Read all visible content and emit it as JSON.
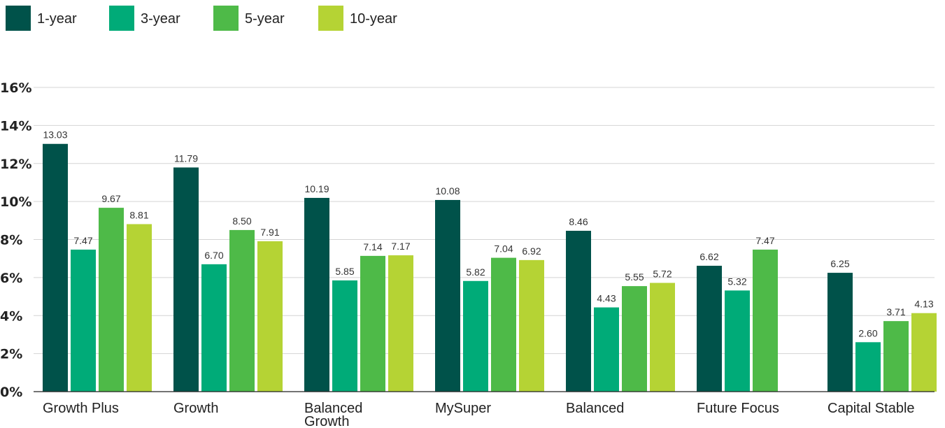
{
  "chart_data": {
    "type": "bar",
    "title": "",
    "xlabel": "",
    "ylabel": "",
    "ylim": [
      0,
      16
    ],
    "yticks": [
      0,
      2,
      4,
      6,
      8,
      10,
      12,
      14,
      16
    ],
    "ytick_labels": [
      "0%",
      "2%",
      "4%",
      "6%",
      "8%",
      "10%",
      "12%",
      "14%",
      "16%"
    ],
    "grid": true,
    "legend_position": "top-left",
    "categories": [
      [
        "Growth Plus"
      ],
      [
        "Growth"
      ],
      [
        "Balanced",
        "Growth"
      ],
      [
        "MySuper"
      ],
      [
        "Balanced"
      ],
      [
        "Future Focus"
      ],
      [
        "Capital Stable"
      ]
    ],
    "series": [
      {
        "name": "1-year",
        "color": "#00524a",
        "values": [
          13.03,
          11.79,
          10.19,
          10.08,
          8.46,
          6.62,
          6.25
        ],
        "labels": [
          "13.03",
          "11.79",
          "10.19",
          "10.08",
          "8.46",
          "6.62",
          "6.25"
        ]
      },
      {
        "name": "3-year",
        "color": "#00ab78",
        "values": [
          7.47,
          6.7,
          5.85,
          5.82,
          4.43,
          5.32,
          2.6
        ],
        "labels": [
          "7.47",
          "6.70",
          "5.85",
          "5.82",
          "4.43",
          "5.32",
          "2.60"
        ]
      },
      {
        "name": "5-year",
        "color": "#4eba48",
        "values": [
          9.67,
          8.5,
          7.14,
          7.04,
          5.55,
          7.47,
          3.71
        ],
        "labels": [
          "9.67",
          "8.50",
          "7.14",
          "7.04",
          "5.55",
          "7.47",
          "3.71"
        ]
      },
      {
        "name": "10-year",
        "color": "#b5d334",
        "values": [
          8.81,
          7.91,
          7.17,
          6.92,
          5.72,
          null,
          4.13
        ],
        "labels": [
          "8.81",
          "7.91",
          "7.17",
          "6.92",
          "5.72",
          "",
          "4.13"
        ]
      }
    ]
  }
}
